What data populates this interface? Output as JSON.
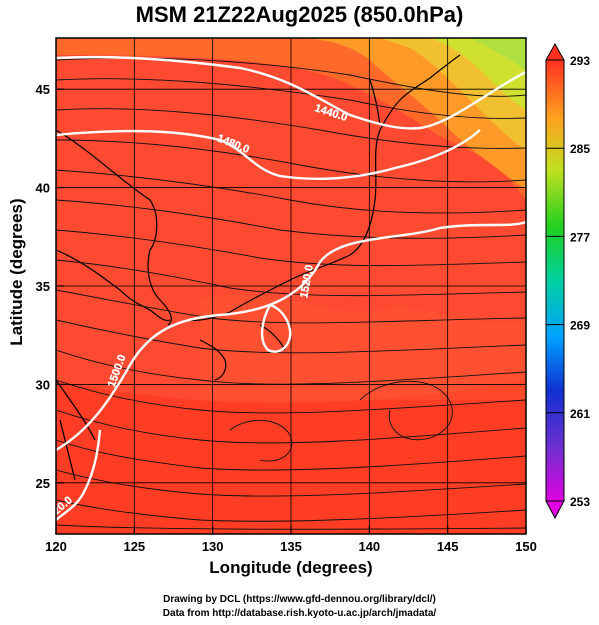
{
  "title": "MSM 21Z22Aug2025 (850.0hPa)",
  "chart_data": {
    "type": "map",
    "xlabel": "Longitude (degrees)",
    "ylabel": "Latitude  (degrees)",
    "xlim": [
      120,
      150
    ],
    "ylim": [
      22.4,
      47.6
    ],
    "xticks": [
      "120",
      "125",
      "130",
      "135",
      "140",
      "145",
      "150"
    ],
    "yticks": [
      "25",
      "30",
      "35",
      "40",
      "45"
    ],
    "colorbar": {
      "ticks": [
        "293",
        "285",
        "277",
        "269",
        "261",
        "253"
      ],
      "range": [
        253,
        293
      ]
    },
    "contour_labels": [
      "1440.0",
      "1480.0",
      "1500.0",
      "1520.0",
      "1520.0"
    ]
  },
  "credits": [
    "Drawing by DCL (https://www.gfd-dennou.org/library/dcl/)",
    "Data from http://database.rish.kyoto-u.ac.jp/arch/jmadata/"
  ]
}
